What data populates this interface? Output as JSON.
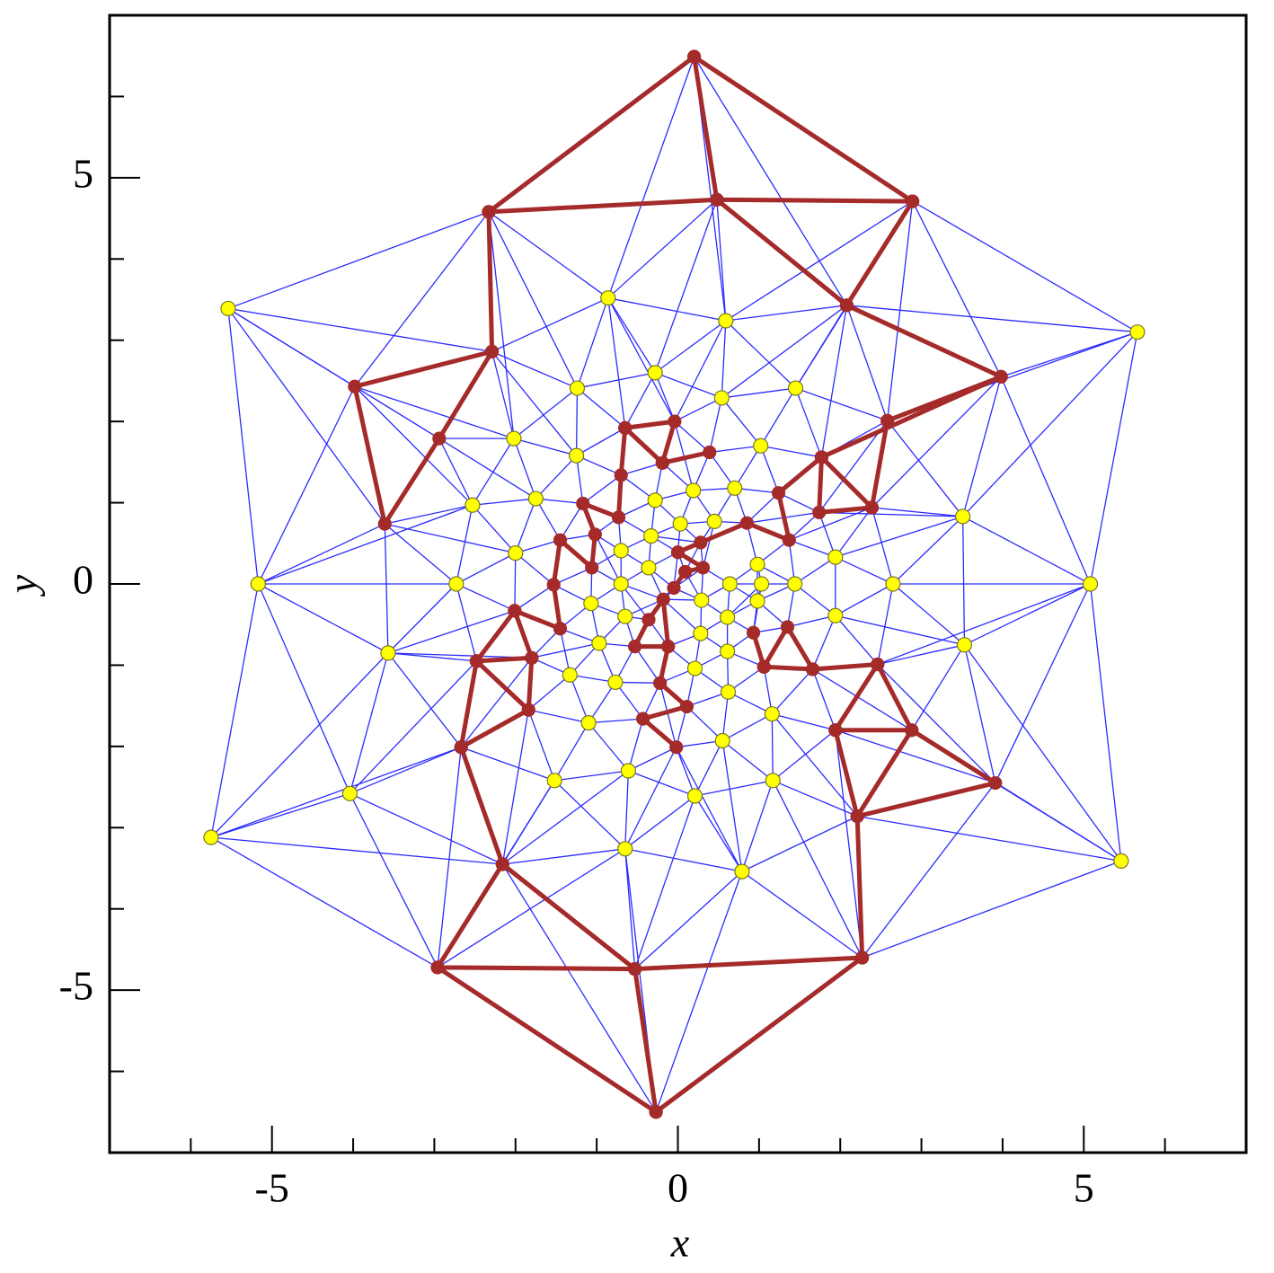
{
  "chart_data": {
    "type": "scatter",
    "xlabel": "x",
    "ylabel": "y",
    "xlim": [
      -7,
      7
    ],
    "ylim": [
      -7,
      7
    ],
    "xticks": [
      -5,
      0,
      5
    ],
    "yticks": [
      -5,
      0,
      5
    ],
    "minor_xticks": [
      -6,
      -4,
      -3,
      -2,
      -1,
      1,
      2,
      3,
      4,
      6
    ],
    "minor_yticks": [
      -6,
      -4,
      -3,
      -2,
      -1,
      1,
      2,
      3,
      4,
      6
    ],
    "mesh_color": "#2b2bff",
    "series": [
      {
        "color": "#a52a2a",
        "line": true,
        "x": [
          -2.33,
          0.2,
          2.89,
          0.48,
          -2.33,
          -2.29,
          -3.98,
          -3.61,
          -2.94,
          -2.29,
          null,
          0.2,
          0.48,
          2.08,
          2.89,
          null,
          2.08,
          3.98,
          2.58,
          2.39,
          1.74,
          1.77,
          2.39,
          null,
          3.98,
          1.77,
          1.24,
          1.37,
          0.85,
          0.28,
          0.0,
          0.31,
          0.09,
          -0.05,
          null,
          -2.96,
          -0.27,
          2.27,
          -0.53,
          -2.96,
          -2.16,
          -0.53,
          -0.27,
          null,
          2.27,
          2.21,
          3.91,
          2.88,
          2.21,
          1.94,
          2.46,
          2.88,
          1.94,
          null,
          2.46,
          1.66,
          1.06,
          0.93,
          null,
          1.66,
          1.35,
          1.06,
          null,
          -2.16,
          -2.67,
          -1.84,
          -2.48,
          -2.67,
          null,
          -2.48,
          -1.8,
          -1.84,
          null,
          -2.48,
          -2.01,
          -1.8,
          null,
          -2.01,
          -1.45,
          -1.53,
          -1.45,
          -1.06,
          -1.02,
          -1.17,
          -0.73,
          -0.7,
          -0.65,
          -0.04,
          -0.19,
          0.39,
          null,
          -0.65,
          -0.19,
          null,
          -0.02,
          -0.43,
          0.11,
          -0.22,
          -0.12,
          -0.53,
          -0.36,
          -0.18,
          -0.12
        ],
        "values": [
          4.58,
          6.49,
          4.71,
          4.73,
          4.58,
          2.86,
          2.43,
          0.74,
          1.79,
          2.86,
          null,
          6.49,
          4.73,
          3.43,
          4.71,
          null,
          3.43,
          2.55,
          2.01,
          0.94,
          0.88,
          1.56,
          0.94,
          null,
          2.55,
          1.56,
          1.12,
          0.54,
          0.75,
          0.51,
          0.39,
          0.2,
          0.15,
          -0.05,
          null,
          -4.72,
          -6.5,
          -4.6,
          -4.74,
          -4.72,
          -3.45,
          -4.74,
          -6.5,
          null,
          -4.6,
          -2.86,
          -2.45,
          -1.8,
          -2.86,
          -1.8,
          -0.99,
          -1.8,
          -1.8,
          null,
          -0.99,
          -1.05,
          -1.02,
          -0.6,
          null,
          -1.05,
          -0.53,
          -1.02,
          null,
          -3.45,
          -2.01,
          -1.55,
          -0.95,
          -2.01,
          null,
          -0.95,
          -0.91,
          -1.55,
          null,
          -0.95,
          -0.33,
          -0.91,
          null,
          -0.33,
          -0.55,
          -0.01,
          0.54,
          0.2,
          0.61,
          0.99,
          0.82,
          1.34,
          1.92,
          2.0,
          1.49,
          1.62,
          null,
          1.92,
          1.49,
          null,
          -2.01,
          -1.66,
          -1.51,
          -1.22,
          -0.77,
          -0.77,
          -0.44,
          -0.19,
          -0.77
        ]
      },
      {
        "color": "#ffff00",
        "x": [
          -5.54,
          5.66,
          -5.17,
          5.08,
          -5.75,
          5.46,
          -0.86,
          0.59,
          -0.28,
          -1.24,
          1.45,
          0.54,
          -2.02,
          -1.25,
          1.02,
          -1.75,
          -2.53,
          -0.28,
          0.19,
          0.7,
          0.03,
          0.45,
          -0.33,
          -2.0,
          -0.7,
          -0.36,
          -2.73,
          -0.7,
          -1.07,
          -0.65,
          -0.97,
          -1.33,
          -0.77,
          -1.1,
          -1.52,
          -0.61,
          -0.65,
          0.21,
          1.17,
          0.79,
          0.55,
          1.16,
          0.62,
          0.21,
          0.61,
          0.28,
          0.61,
          0.98,
          0.29,
          0.64,
          1.03,
          1.44,
          0.98,
          1.94,
          1.94,
          2.65,
          3.51,
          3.53,
          -3.57,
          -4.04
        ],
        "values": [
          3.39,
          3.1,
          0,
          0,
          -3.12,
          -3.41,
          3.52,
          3.24,
          2.6,
          2.41,
          2.41,
          2.29,
          1.79,
          1.58,
          1.7,
          1.05,
          0.97,
          1.03,
          1.15,
          1.18,
          0.74,
          0.77,
          0.59,
          0.38,
          0.41,
          0.2,
          0,
          0,
          -0.24,
          -0.4,
          -0.73,
          -1.12,
          -1.21,
          -1.71,
          -2.42,
          -2.3,
          -3.26,
          -2.61,
          -2.42,
          -3.54,
          -1.93,
          -1.6,
          -1.33,
          -1.04,
          -0.83,
          -0.61,
          -0.41,
          -0.21,
          -0.2,
          0,
          0,
          0,
          0.24,
          0.33,
          -0.39,
          0,
          0.83,
          -0.75,
          -0.85,
          -2.58
        ]
      }
    ]
  }
}
